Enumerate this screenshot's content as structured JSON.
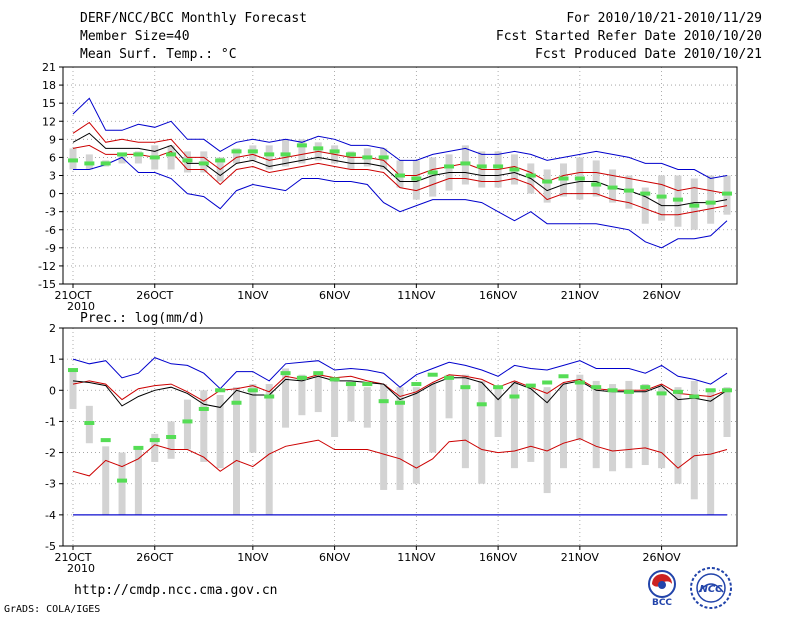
{
  "header": {
    "title": "DERF/NCC/BCC Monthly Forecast",
    "member_size": "Member Size=40",
    "variable": "Mean Surf. Temp.: °C",
    "forecast_period": "For 2010/10/21-2010/11/29",
    "start_date": "Fcst Started Refer Date 2010/10/20",
    "produced_date": "Fcst Produced Date 2010/10/21"
  },
  "footer": {
    "url": "http://cmdp.ncc.cma.gov.cn",
    "credit": "GrADS: COLA/IGES",
    "logo_left": "BCC",
    "logo_right": "NCC"
  },
  "colors": {
    "max_line": "#0000cc",
    "upper_line": "#cc0000",
    "ensemble_mean": "#000000",
    "ensemble_median": "#55dd55",
    "box": "#d3d3d3",
    "grid": "#999999",
    "floor_line": "#0000cc"
  },
  "chart_data": [
    {
      "id": "temperature",
      "type": "box-line",
      "title": "Mean Surf. Temp.: °C",
      "xlabel": "",
      "ylabel": "",
      "ylim": [
        -15,
        21
      ],
      "yticks": [
        -15,
        -12,
        -9,
        -6,
        -3,
        0,
        3,
        6,
        9,
        12,
        15,
        18,
        21
      ],
      "xlim": [
        0,
        40
      ],
      "xticks": [
        {
          "day": 0,
          "label": "21OCT"
        },
        {
          "day": 5,
          "label": "26OCT"
        },
        {
          "day": 11,
          "label": "1NOV"
        },
        {
          "day": 16,
          "label": "6NOV"
        },
        {
          "day": 21,
          "label": "11NOV"
        },
        {
          "day": 26,
          "label": "16NOV"
        },
        {
          "day": 31,
          "label": "21NOV"
        },
        {
          "day": 36,
          "label": "26NOV"
        }
      ],
      "year_label": "2010",
      "grid": true,
      "series": [
        {
          "name": "ensemble max",
          "color_key": "max_line",
          "values": [
            13.2,
            15.8,
            10.5,
            10.5,
            11.5,
            11,
            12,
            9,
            9,
            7,
            8.5,
            9,
            8.5,
            9,
            8.5,
            9.5,
            9,
            8,
            8,
            7.5,
            5.5,
            5.5,
            6.5,
            7,
            7.5,
            6.5,
            6.5,
            7,
            6.5,
            5.5,
            6,
            6.5,
            7,
            6.5,
            6,
            5,
            5,
            4,
            4,
            2.5,
            3
          ]
        },
        {
          "name": "upper",
          "color_key": "upper_line",
          "values": [
            10,
            11.8,
            8.5,
            9,
            8.5,
            8.5,
            9,
            6,
            6,
            4,
            6,
            6.5,
            5.5,
            6,
            6.5,
            7,
            6.5,
            6,
            6,
            5.5,
            3,
            3,
            4,
            4.5,
            5,
            4,
            4,
            4.5,
            3.5,
            2,
            3,
            3.5,
            3.5,
            3,
            2.5,
            2,
            1.5,
            0.5,
            1,
            0.5,
            0
          ]
        },
        {
          "name": "ensemble mean",
          "color_key": "ensemble_mean",
          "values": [
            8.5,
            10,
            7.5,
            7.5,
            7.5,
            7,
            8,
            5,
            5,
            3,
            5,
            5.5,
            4.5,
            5,
            5.5,
            6,
            5.5,
            5,
            5,
            4.5,
            2,
            2,
            3,
            3.5,
            3.5,
            3,
            3,
            3.5,
            2.5,
            0.5,
            1.5,
            2,
            2,
            1,
            0.5,
            -0.5,
            -2,
            -2,
            -1.5,
            -1.5,
            -1
          ]
        },
        {
          "name": "lower",
          "color_key": "upper_line",
          "values": [
            7.5,
            8,
            6.5,
            6.5,
            6.5,
            6,
            7,
            4,
            4,
            1.5,
            4,
            4.5,
            3.5,
            4,
            4.5,
            5,
            4.5,
            4,
            4,
            3.5,
            1,
            0.5,
            1.5,
            2.5,
            2.5,
            2,
            2,
            2.5,
            1.5,
            -1,
            0,
            0,
            0,
            -1,
            -1.5,
            -2.5,
            -3.5,
            -3.5,
            -3,
            -2.5,
            -2
          ]
        },
        {
          "name": "ensemble min",
          "color_key": "max_line",
          "values": [
            4,
            4,
            4.8,
            6,
            3.5,
            3.5,
            2.5,
            0,
            -0.5,
            -2.5,
            0.5,
            1.5,
            1,
            0.5,
            2.5,
            2.5,
            2,
            2,
            1.5,
            -1.5,
            -3,
            -2,
            -1,
            -1,
            -1,
            -1.5,
            -3,
            -4.5,
            -3,
            -5,
            -5,
            -5,
            -5,
            -5.5,
            -6,
            -8,
            -9,
            -7.5,
            -7.5,
            -7,
            -4.5
          ]
        }
      ],
      "boxes": {
        "color_key": "box",
        "low": [
          4,
          4,
          4.5,
          5,
          5,
          4,
          4,
          3.5,
          3.5,
          2,
          5,
          5.5,
          4,
          4.5,
          5,
          5.5,
          5,
          4,
          4.5,
          4,
          1,
          -1,
          -0.5,
          0.5,
          1.5,
          1,
          1,
          1.5,
          0,
          -1.5,
          -0.5,
          -1,
          -0.5,
          -1.5,
          -2.5,
          -5,
          -4.5,
          -5.5,
          -6,
          -5,
          -3.5
        ],
        "high": [
          7.5,
          6.5,
          5.5,
          6.5,
          7,
          8,
          8,
          7,
          7,
          6,
          7.5,
          8,
          8,
          9,
          9,
          8.5,
          8,
          7,
          7.5,
          7.5,
          5.5,
          5.5,
          6,
          6.5,
          8,
          7,
          7,
          6.5,
          5,
          4,
          5,
          6,
          5.5,
          4,
          3,
          1,
          3,
          3,
          2.5,
          3,
          3
        ]
      },
      "medians": {
        "color_key": "ensemble_median",
        "values": [
          5.5,
          5,
          5,
          6.5,
          6.5,
          6,
          6.5,
          5.5,
          5,
          5.5,
          7,
          7,
          6.5,
          6.5,
          8,
          7.5,
          7,
          6.5,
          6,
          6,
          3,
          2.5,
          3.5,
          4.5,
          5,
          4.5,
          4.5,
          4,
          3,
          2,
          2.5,
          2.5,
          1.5,
          1,
          0.5,
          0,
          -0.5,
          -1,
          -2,
          -1.5,
          0
        ]
      }
    },
    {
      "id": "precipitation",
      "type": "box-line",
      "title": "Prec.: log(mm/d)",
      "xlabel": "",
      "ylabel": "",
      "ylim": [
        -5,
        2
      ],
      "yticks": [
        -5,
        -4,
        -3,
        -2,
        -1,
        0,
        1,
        2
      ],
      "xlim": [
        0,
        40
      ],
      "xticks": [
        {
          "day": 0,
          "label": "21OCT"
        },
        {
          "day": 5,
          "label": "26OCT"
        },
        {
          "day": 11,
          "label": "1NOV"
        },
        {
          "day": 16,
          "label": "6NOV"
        },
        {
          "day": 21,
          "label": "11NOV"
        },
        {
          "day": 26,
          "label": "16NOV"
        },
        {
          "day": 31,
          "label": "21NOV"
        },
        {
          "day": 36,
          "label": "26NOV"
        }
      ],
      "year_label": "2010",
      "grid": true,
      "floor": {
        "value": -4,
        "color_key": "floor_line"
      },
      "series": [
        {
          "name": "ensemble max",
          "color_key": "max_line",
          "values": [
            1,
            0.85,
            0.95,
            0.4,
            0.55,
            1.05,
            0.85,
            0.8,
            0.55,
            0.05,
            0.6,
            0.6,
            0.3,
            0.85,
            0.9,
            0.95,
            0.65,
            0.7,
            0.65,
            0.55,
            0.1,
            0.5,
            0.7,
            0.9,
            0.8,
            0.65,
            0.45,
            0.8,
            0.7,
            0.65,
            0.8,
            0.95,
            0.7,
            0.7,
            0.7,
            0.55,
            0.8,
            0.45,
            0.35,
            0.2,
            0.55
          ]
        },
        {
          "name": "upper",
          "color_key": "upper_line",
          "values": [
            0.2,
            0.3,
            0.2,
            -0.3,
            0.05,
            0.15,
            0.2,
            -0.05,
            -0.35,
            0,
            0.05,
            0.15,
            -0.05,
            0.45,
            0.35,
            0.5,
            0.4,
            0.45,
            0.3,
            0.2,
            -0.2,
            -0.05,
            0.25,
            0.5,
            0.45,
            0.35,
            0.1,
            0.3,
            0.1,
            -0.1,
            0.25,
            0.35,
            0.05,
            0,
            0,
            0,
            0.2,
            -0.1,
            -0.15,
            -0.2,
            0
          ]
        },
        {
          "name": "ensemble mean",
          "color_key": "ensemble_mean",
          "values": [
            0.3,
            0.25,
            0.15,
            -0.5,
            -0.2,
            0,
            0.1,
            -0.1,
            -0.45,
            -0.55,
            0,
            -0.15,
            -0.15,
            0.35,
            0.3,
            0.45,
            0.3,
            0.3,
            0.25,
            0.2,
            -0.3,
            -0.1,
            0.2,
            0.4,
            0.4,
            0.25,
            -0.3,
            0.25,
            0.05,
            -0.4,
            0.2,
            0.3,
            0,
            -0.05,
            -0.05,
            -0.05,
            0.15,
            -0.3,
            -0.25,
            -0.35,
            0
          ]
        },
        {
          "name": "lower",
          "color_key": "upper_line",
          "values": [
            -2.6,
            -2.75,
            -2.25,
            -2.45,
            -2.2,
            -1.75,
            -1.9,
            -1.9,
            -2.15,
            -2.6,
            -2.25,
            -2.45,
            -2.05,
            -1.8,
            -1.7,
            -1.6,
            -1.9,
            -1.9,
            -1.9,
            -2.05,
            -2.2,
            -2.5,
            -2.2,
            -1.65,
            -1.6,
            -1.9,
            -2,
            -1.95,
            -1.8,
            -1.95,
            -1.7,
            -1.55,
            -1.8,
            -1.95,
            -1.9,
            -1.85,
            -2,
            -2.5,
            -2.1,
            -2.05,
            -1.9
          ]
        },
        {
          "name": "ensemble min",
          "color_key": "floor_line",
          "values": [
            -4,
            -4,
            -4,
            -4,
            -4,
            -4,
            -4,
            -4,
            -4,
            -4,
            -4,
            -4,
            -4,
            -4,
            -4,
            -4,
            -4,
            -4,
            -4,
            -4,
            -4,
            -4,
            -4,
            -4,
            -4,
            -4,
            -4,
            -4,
            -4,
            -4,
            -4,
            -4,
            -4,
            -4,
            -4,
            -4,
            -4,
            -4,
            -4,
            -4,
            -4
          ]
        }
      ],
      "boxes": {
        "color_key": "box",
        "low": [
          -0.6,
          -1.7,
          -4,
          -4,
          -4,
          -2.3,
          -2.2,
          -1.9,
          -2.3,
          -2.5,
          -4,
          -2,
          -4,
          -1.2,
          -0.8,
          -0.7,
          -1.5,
          -1,
          -1.2,
          -3.2,
          -3.2,
          -3,
          -2,
          -0.9,
          -2.5,
          -3,
          -1.5,
          -2.5,
          -2.3,
          -3.3,
          -2.5,
          -1.6,
          -2.5,
          -2.6,
          -2.5,
          -2.4,
          -2.5,
          -3,
          -3.5,
          -4,
          -1.5
        ],
        "high": [
          0.6,
          -0.5,
          -1.8,
          -2,
          -1.9,
          -1.4,
          -1,
          -0.3,
          0,
          -0.15,
          0.1,
          0.2,
          0.2,
          0.7,
          0.5,
          0.5,
          0.3,
          0.3,
          0.1,
          0.2,
          0.1,
          0.1,
          0.2,
          0.5,
          0.5,
          0.3,
          0.1,
          0.3,
          0.1,
          0.1,
          0.2,
          0.5,
          0.3,
          0.2,
          0.3,
          0.2,
          0.1,
          0.1,
          0.3,
          0,
          0.1
        ]
      },
      "medians": {
        "color_key": "ensemble_median",
        "values": [
          0.65,
          -1.05,
          -1.6,
          -2.9,
          -1.85,
          -1.6,
          -1.5,
          -1,
          -0.6,
          0,
          -0.4,
          0,
          -0.2,
          0.55,
          0.4,
          0.55,
          0.35,
          0.2,
          0.2,
          -0.35,
          -0.4,
          0.2,
          0.5,
          0.4,
          0.1,
          -0.45,
          0.1,
          -0.2,
          0.15,
          0.25,
          0.45,
          0.25,
          0.1,
          0,
          -0.05,
          0.1,
          -0.1,
          -0.05,
          -0.2,
          0,
          0
        ]
      }
    }
  ]
}
